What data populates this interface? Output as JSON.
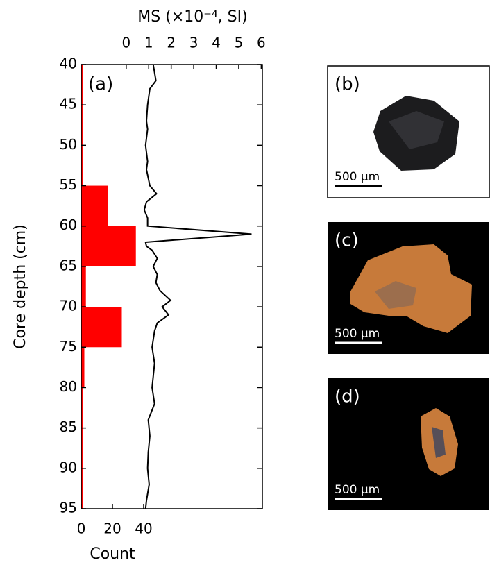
{
  "chart_data": [
    {
      "type": "histogram",
      "orientation": "horizontal",
      "annotation": "(a)",
      "xlabel": "Count",
      "xlim": [
        0,
        116
      ],
      "xticks": [
        0,
        20,
        40
      ],
      "ylabel": "Core depth (cm)",
      "ylim": [
        40,
        95
      ],
      "y_inverted": true,
      "yticks": [
        40,
        45,
        50,
        55,
        60,
        65,
        70,
        75,
        80,
        85,
        90,
        95
      ],
      "bins": [
        40,
        45,
        50,
        55,
        60,
        65,
        70,
        75,
        80,
        85,
        90,
        95
      ],
      "values": [
        0,
        0,
        0,
        17,
        35,
        3,
        26,
        2,
        0,
        0,
        0
      ],
      "color": "#ff0000"
    },
    {
      "type": "line",
      "xlabel": "MS (×10⁻⁴, SI)",
      "xlim": [
        -2,
        6.05
      ],
      "xticks": [
        0,
        1,
        2,
        3,
        4,
        5,
        6
      ],
      "ylim": [
        40,
        95
      ],
      "y_inverted": true,
      "color": "#000000",
      "y": [
        40,
        42,
        43,
        45,
        47,
        48,
        50,
        52,
        53,
        55,
        56,
        57,
        58,
        59,
        60,
        61,
        62,
        62.5,
        63,
        64,
        65,
        66,
        67,
        68,
        69.2,
        70,
        71,
        72,
        73,
        75,
        77,
        80,
        82,
        84,
        86,
        88,
        90,
        92,
        94,
        95
      ],
      "values": [
        1.2,
        1.32,
        1.05,
        0.95,
        0.9,
        0.95,
        0.86,
        0.95,
        0.9,
        1.05,
        1.35,
        0.9,
        0.8,
        0.95,
        0.95,
        5.57,
        0.86,
        0.9,
        1.15,
        1.38,
        1.2,
        1.38,
        1.32,
        1.5,
        1.97,
        1.6,
        1.88,
        1.38,
        1.26,
        1.15,
        1.26,
        1.15,
        1.26,
        0.98,
        1.05,
        0.98,
        0.95,
        1.02,
        0.9,
        0.86
      ]
    }
  ],
  "panels": [
    {
      "label": "(b)",
      "scale": "500 μm"
    },
    {
      "label": "(c)",
      "scale": "500 μm"
    },
    {
      "label": "(d)",
      "scale": "500 μm"
    }
  ]
}
